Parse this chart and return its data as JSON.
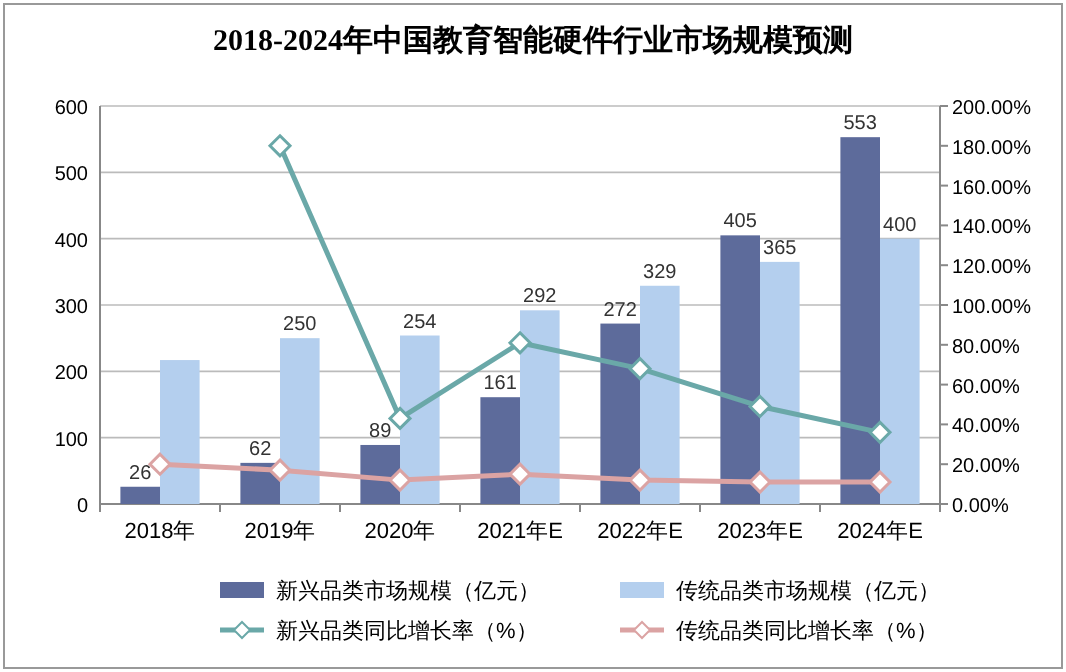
{
  "chart_data": {
    "type": "bar",
    "title": "2018-2024年中国教育智能硬件行业市场规模预测",
    "categories": [
      "2018年",
      "2019年",
      "2020年",
      "2021年E",
      "2022年E",
      "2023年E",
      "2024年E"
    ],
    "series": [
      {
        "name": "新兴品类市场规模（亿元）",
        "axis": "y",
        "color": "#5d6b9b",
        "values": [
          26,
          62,
          89,
          161,
          272,
          405,
          553
        ],
        "value_labels": [
          "26",
          "62",
          "89",
          "161",
          "272",
          "405",
          "553"
        ]
      },
      {
        "name": "传统品类市场规模（亿元）",
        "axis": "y",
        "color": "#b4cfee",
        "values": [
          217,
          250,
          254,
          292,
          329,
          365,
          400
        ],
        "value_labels": [
          null,
          "250",
          "254",
          "292",
          "329",
          "365",
          "400"
        ]
      },
      {
        "name": "新兴品类同比增长率（%）",
        "type": "line",
        "axis": "y2",
        "color": "#6aa8a8",
        "values": [
          null,
          180,
          43,
          81,
          68,
          49,
          36
        ]
      },
      {
        "name": "传统品类同比增长率（%）",
        "type": "line",
        "axis": "y2",
        "color": "#dba3a3",
        "values": [
          20,
          17,
          12,
          15,
          12,
          11,
          11
        ]
      }
    ],
    "ylim": [
      0,
      600
    ],
    "yticks": [
      0,
      100,
      200,
      300,
      400,
      500,
      600
    ],
    "y2lim": [
      0,
      200
    ],
    "y2ticks": [
      {
        "value": 0,
        "label": "0.00%"
      },
      {
        "value": 20,
        "label": "20.00%"
      },
      {
        "value": 40,
        "label": "40.00%"
      },
      {
        "value": 60,
        "label": "60.00%"
      },
      {
        "value": 80,
        "label": "80.00%"
      },
      {
        "value": 100,
        "label": "100.00%"
      },
      {
        "value": 120,
        "label": "120.00%"
      },
      {
        "value": 140,
        "label": "140.00%"
      },
      {
        "value": 160,
        "label": "160.00%"
      },
      {
        "value": 180,
        "label": "180.00%"
      },
      {
        "value": 200,
        "label": "200.00%"
      }
    ],
    "grid": "y",
    "legend": "bottom",
    "marker": "diamond",
    "line_style": "solid"
  }
}
